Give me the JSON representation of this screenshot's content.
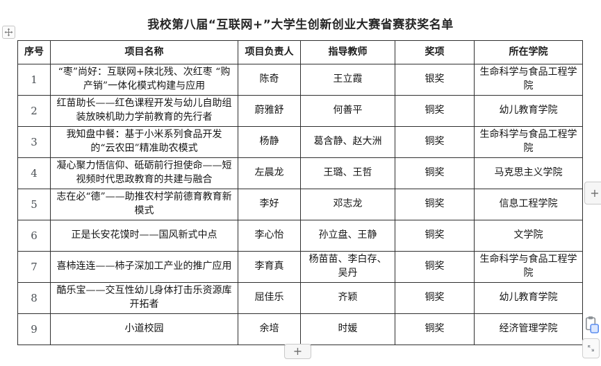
{
  "page": {
    "title": "我校第八届“互联网+”大学生创新创业大赛省赛获奖名单"
  },
  "table": {
    "headers": [
      "序号",
      "项目名称",
      "项目负责人",
      "指导教师",
      "奖项",
      "所在学院"
    ],
    "rows": [
      {
        "no": "1",
        "project": "“枣”尚好：互联网+陕北残、次红枣 “购产销”一体化模式构建与应用",
        "leader": "陈奇",
        "teachers": "王立霞",
        "award": "银奖",
        "college": "生命科学与食品工程学院"
      },
      {
        "no": "2",
        "project": "红苗助长——红色课程开发与幼儿自助组装放映机助力学前教育的先行者",
        "leader": "蔚雅舒",
        "teachers": "何善平",
        "award": "铜奖",
        "college": "幼儿教育学院"
      },
      {
        "no": "3",
        "project": "我知盘中餐：基于小米系列食品开发的“云农田”精准助农模式",
        "leader": "杨静",
        "teachers": "葛含静、赵大洲",
        "award": "铜奖",
        "college": "生命科学与食品工程学院"
      },
      {
        "no": "4",
        "project": "凝心聚力悟信仰、砥砺前行担使命——短视频时代思政教育的共建与融合",
        "leader": "左晨龙",
        "teachers": "王璐、王哲",
        "award": "铜奖",
        "college": "马克思主义学院"
      },
      {
        "no": "5",
        "project": "志在必“德”——助推农村学前德育教育新模式",
        "leader": "李好",
        "teachers": "邓志龙",
        "award": "铜奖",
        "college": "信息工程学院"
      },
      {
        "no": "6",
        "project": "正是长安花馍时——国风新式中点",
        "leader": "李心怡",
        "teachers": "孙立盘、王静",
        "award": "铜奖",
        "college": "文学院"
      },
      {
        "no": "7",
        "project": "喜柿连连——柿子深加工产业的推广应用",
        "leader": "李育真",
        "teachers": "杨苗苗、李白存、吴丹",
        "award": "铜奖",
        "college": "生命科学与食品工程学院"
      },
      {
        "no": "8",
        "project": "酷乐宝——交互性幼儿身体打击乐资源库开拓者",
        "leader": "屈佳乐",
        "teachers": "齐颖",
        "award": "铜奖",
        "college": "幼儿教育学院"
      },
      {
        "no": "9",
        "project": "小道校园",
        "leader": "余培",
        "teachers": "时媛",
        "award": "铜奖",
        "college": "经济管理学院"
      }
    ]
  },
  "controls": {
    "add_row_label": "+",
    "add_column_label": "+"
  },
  "icons": {
    "move": "move-icon",
    "paste": "paste-options-icon",
    "resize": "resize-handle-icon"
  },
  "colors": {
    "table_border": "#2e2e2e",
    "text": "#141414",
    "serial_text": "#4a4f54",
    "button_bg": "#f6f6f6",
    "button_border": "#c9c9c9",
    "paste_accent": "#5b8def",
    "paste_fill": "#dbe7ff",
    "icon_gray": "#8a8f94"
  }
}
